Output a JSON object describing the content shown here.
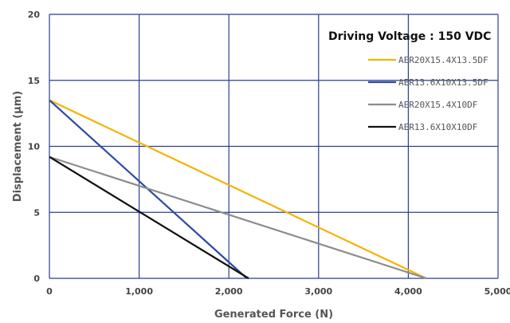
{
  "chart_data": {
    "type": "line",
    "xlabel": "Generated Force (N)",
    "ylabel": "Displacement  (μm)",
    "xlim": [
      0,
      5000
    ],
    "ylim": [
      0,
      20
    ],
    "x_ticks": [
      0,
      1000,
      2000,
      3000,
      4000,
      5000
    ],
    "x_tick_labels": [
      "0",
      "1,000",
      "2,000",
      "3,000",
      "4,000",
      "5,000"
    ],
    "y_ticks": [
      0,
      5,
      10,
      15,
      20
    ],
    "y_tick_labels": [
      "0",
      "5",
      "10",
      "15",
      "20"
    ],
    "grid": true,
    "grid_color": "#2b3f91",
    "legend_title": "Driving Voltage : 150 VDC",
    "legend_position": "top-right",
    "series": [
      {
        "name": "AER20X15.4X13.5DF",
        "color": "#f4b400",
        "x": [
          0,
          4200
        ],
        "y": [
          13.5,
          0
        ]
      },
      {
        "name": "AER13.6X10X13.5DF",
        "color": "#2e4aa6",
        "x": [
          0,
          2200
        ],
        "y": [
          13.5,
          0
        ]
      },
      {
        "name": "AER20X15.4X10DF",
        "color": "#8c8c8c",
        "x": [
          0,
          4200
        ],
        "y": [
          9.2,
          0
        ]
      },
      {
        "name": "AER13.6X10X10DF",
        "color": "#111111",
        "x": [
          0,
          2220
        ],
        "y": [
          9.2,
          0
        ]
      }
    ]
  }
}
